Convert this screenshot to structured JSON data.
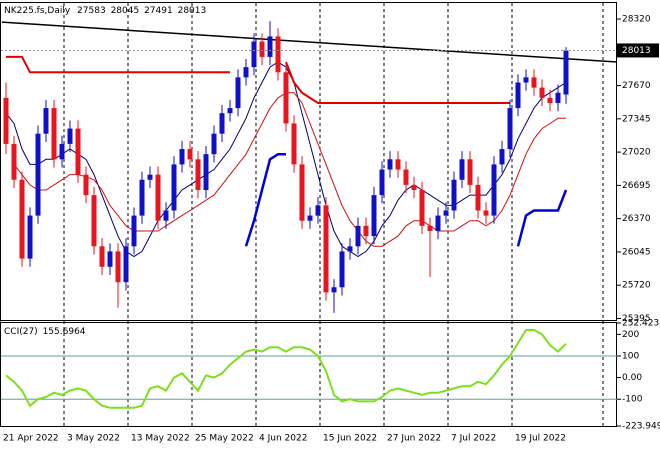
{
  "chart_data": [
    {
      "type": "candlestick",
      "title": "NK225.fs,Daily",
      "categories": [
        "21 Apr 2022",
        null,
        null,
        null,
        null,
        null,
        null,
        null,
        "3 May 2022",
        null,
        null,
        null,
        null,
        null,
        null,
        null,
        "13 May 2022",
        null,
        null,
        null,
        null,
        null,
        null,
        null,
        "25 May 2022",
        null,
        null,
        null,
        null,
        null,
        null,
        null,
        "4 Jun 2022",
        null,
        null,
        null,
        null,
        null,
        null,
        null,
        "15 Jun 2022",
        null,
        null,
        null,
        null,
        null,
        null,
        null,
        "27 Jun 2022",
        null,
        null,
        null,
        null,
        null,
        null,
        null,
        "7 Jul 2022",
        null,
        null,
        null,
        null,
        null,
        null,
        null,
        "19 Jul 2022",
        null,
        null,
        null,
        null,
        null,
        null
      ],
      "open": [
        27550,
        27100,
        26750,
        25980,
        26400,
        27200,
        27450,
        26950,
        27100,
        27250,
        26800,
        26600,
        26100,
        25900,
        26050,
        25750,
        26100,
        26400,
        26750,
        26800,
        26350,
        26450,
        26900,
        27050,
        26950,
        26650,
        27000,
        27200,
        27400,
        27450,
        27750,
        27850,
        28100,
        27950,
        28150,
        27800,
        27300,
        26900,
        26350,
        26400,
        26500,
        25650,
        25700,
        26050,
        26100,
        26300,
        26200,
        26600,
        26850,
        26950,
        26850,
        26700,
        26650,
        26300,
        26250,
        26400,
        26450,
        26750,
        26950,
        26700,
        26450,
        26400,
        26900,
        27050,
        27450,
        27700,
        27750,
        27650,
        27550,
        27500,
        27583
      ],
      "high": [
        27700,
        27180,
        26830,
        26480,
        27280,
        27530,
        27530,
        27180,
        27330,
        27330,
        26880,
        26680,
        26180,
        26130,
        26130,
        26180,
        26480,
        26830,
        26880,
        26880,
        26530,
        26980,
        27130,
        27130,
        27030,
        27080,
        27280,
        27480,
        27530,
        27830,
        27930,
        28180,
        28180,
        28300,
        28230,
        27880,
        27380,
        26980,
        26480,
        26580,
        26580,
        25780,
        26130,
        26180,
        26380,
        26380,
        26680,
        26930,
        27030,
        27030,
        26930,
        26780,
        26730,
        26380,
        26480,
        26530,
        26830,
        27030,
        27030,
        26780,
        26530,
        26980,
        27130,
        27530,
        27780,
        27830,
        27830,
        27730,
        27630,
        27680,
        28045
      ],
      "low": [
        27000,
        26670,
        25900,
        25900,
        26320,
        27120,
        26870,
        26870,
        27020,
        26720,
        26520,
        26020,
        25820,
        25820,
        25500,
        25670,
        26020,
        26320,
        26670,
        26270,
        26270,
        26370,
        26820,
        26870,
        26570,
        26570,
        26920,
        27120,
        27320,
        27370,
        27670,
        27770,
        27870,
        27870,
        27720,
        27220,
        26820,
        26270,
        26270,
        26320,
        25570,
        25450,
        25620,
        25970,
        26020,
        26120,
        26120,
        26520,
        26770,
        26770,
        26620,
        26570,
        26220,
        25800,
        26170,
        26320,
        26370,
        26670,
        26620,
        26370,
        26320,
        26320,
        26820,
        26970,
        27370,
        27620,
        27570,
        27470,
        27420,
        27420,
        27491
      ],
      "close": [
        27100,
        26750,
        25980,
        26400,
        27200,
        27450,
        26950,
        27100,
        27250,
        26800,
        26600,
        26100,
        25900,
        26050,
        25750,
        26100,
        26400,
        26750,
        26800,
        26350,
        26450,
        26900,
        27050,
        26950,
        26650,
        27000,
        27200,
        27400,
        27450,
        27750,
        27850,
        28100,
        27950,
        28150,
        27800,
        27300,
        26900,
        26350,
        26400,
        26500,
        25650,
        25700,
        26050,
        26100,
        26300,
        26200,
        26600,
        26850,
        26950,
        26850,
        26700,
        26650,
        26300,
        26250,
        26400,
        26450,
        26750,
        26950,
        26700,
        26450,
        26400,
        26900,
        27050,
        27450,
        27700,
        27750,
        27650,
        27550,
        27500,
        27600,
        28013
      ],
      "up_color": "#1010c8",
      "down_color": "#e8141e",
      "series": [
        {
          "color": "#00006e",
          "width": 1,
          "values": [
            27400,
            27300,
            27050,
            26900,
            26900,
            26950,
            26950,
            27000,
            27050,
            27000,
            26950,
            26800,
            26600,
            26400,
            26200,
            26050,
            26000,
            26050,
            26200,
            26350,
            26450,
            26550,
            26650,
            26700,
            26750,
            26800,
            26850,
            26950,
            27050,
            27200,
            27350,
            27550,
            27700,
            27850,
            27900,
            27850,
            27700,
            27400,
            27100,
            26800,
            26500,
            26250,
            26100,
            26050,
            26000,
            26050,
            26150,
            26300,
            26400,
            26550,
            26650,
            26700,
            26650,
            26600,
            26550,
            26500,
            26500,
            26550,
            26600,
            26600,
            26600,
            26700,
            26800,
            26950,
            27150,
            27300,
            27450,
            27550,
            27600,
            27650,
            27700
          ]
        },
        {
          "color": "#d01010",
          "width": 1,
          "values": [
            null,
            26900,
            26800,
            26700,
            26650,
            26650,
            26700,
            26750,
            26800,
            26800,
            26780,
            26750,
            26650,
            26500,
            26400,
            26300,
            26250,
            26250,
            26250,
            26250,
            26300,
            26350,
            26400,
            26450,
            26500,
            26550,
            26600,
            26700,
            26800,
            26900,
            27000,
            27150,
            27300,
            27450,
            27550,
            27600,
            27600,
            27500,
            27300,
            27100,
            26900,
            26700,
            26500,
            26350,
            26250,
            26150,
            26100,
            26100,
            26150,
            26200,
            26300,
            26350,
            26350,
            26300,
            26250,
            26250,
            26250,
            26300,
            26350,
            26350,
            26300,
            26350,
            26450,
            26600,
            26800,
            27000,
            27150,
            27250,
            27300,
            27350,
            27350
          ]
        },
        {
          "color": "#e00000",
          "width": 2,
          "values": [
            27950,
            27950,
            27950,
            27800,
            27800,
            27800,
            27800,
            27800,
            27800,
            27800,
            27800,
            27800,
            27800,
            27800,
            27800,
            27800,
            27800,
            27800,
            27800,
            27800,
            27800,
            27800,
            27800,
            27800,
            27800,
            27800,
            27800,
            27800,
            27800,
            null,
            null,
            null,
            null,
            null,
            null,
            27900,
            27700,
            27600,
            27550,
            27500,
            27500,
            27500,
            27500,
            27500,
            27500,
            27500,
            27500,
            27500,
            27500,
            27500,
            27500,
            27500,
            27500,
            27500,
            27500,
            27500,
            27500,
            27500,
            27500,
            27500,
            27500,
            27500,
            27500,
            27500,
            null,
            null,
            null,
            null,
            null,
            null,
            null
          ]
        },
        {
          "color": "#0000dd",
          "width": 2.5,
          "values": [
            null,
            null,
            null,
            null,
            null,
            null,
            null,
            null,
            null,
            null,
            null,
            null,
            null,
            null,
            null,
            null,
            null,
            null,
            null,
            null,
            null,
            null,
            null,
            null,
            null,
            null,
            null,
            null,
            null,
            null,
            26100,
            26350,
            26650,
            26950,
            27000,
            27000,
            null,
            null,
            null,
            null,
            null,
            null,
            null,
            null,
            null,
            null,
            null,
            null,
            null,
            null,
            null,
            null,
            null,
            null,
            null,
            null,
            null,
            null,
            null,
            null,
            null,
            null,
            null,
            null,
            26100,
            26400,
            26450,
            26450,
            26450,
            26450,
            26650
          ]
        }
      ],
      "trendline": {
        "color": "#000000",
        "values": [
          28290,
          27900
        ]
      },
      "ylim": [
        25390,
        28457
      ],
      "yticks": [
        28320,
        27995,
        27670,
        27345,
        27020,
        26695,
        26370,
        26045,
        25720,
        25395
      ]
    },
    {
      "type": "line",
      "title": "CCI(27)",
      "series": [
        {
          "color": "#7ce01c",
          "width": 2,
          "values": [
            10,
            -20,
            -60,
            -130,
            -100,
            -90,
            -70,
            -80,
            -60,
            -50,
            -60,
            -100,
            -130,
            -140,
            -140,
            -140,
            -140,
            -130,
            -50,
            -40,
            -60,
            0,
            20,
            -20,
            -60,
            10,
            0,
            20,
            60,
            90,
            120,
            130,
            120,
            140,
            140,
            120,
            140,
            140,
            130,
            100,
            30,
            -80,
            -110,
            -100,
            -110,
            -110,
            -110,
            -90,
            -60,
            -50,
            -60,
            -70,
            -80,
            -70,
            -70,
            -60,
            -50,
            -40,
            -40,
            -20,
            -30,
            10,
            60,
            100,
            160,
            220,
            220,
            200,
            150,
            120,
            155.6964
          ]
        }
      ],
      "ylim": [
        -223.949,
        252.4231
      ],
      "yticks": [
        252.4231,
        200,
        100,
        {
          "value": 0,
          "label": "0.00"
        },
        -100,
        -223.949
      ],
      "levels": [
        100,
        -100
      ],
      "level_color": "#5f9ea0"
    }
  ]
}
